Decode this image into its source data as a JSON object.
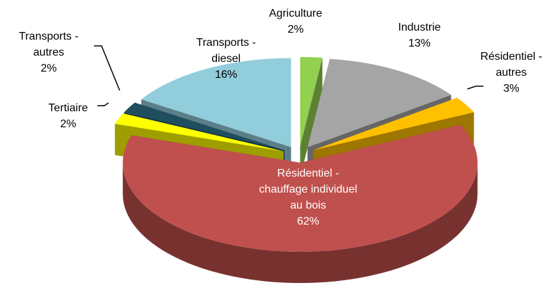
{
  "chart_data": {
    "type": "pie3d",
    "categories": [
      "Agriculture",
      "Industrie",
      "Résidentiel - autres",
      "Résidentiel - chauffage individuel au bois",
      "Tertiaire",
      "Transports - autres",
      "Transports - diesel"
    ],
    "values": [
      2,
      13,
      3,
      62,
      2,
      2,
      16
    ],
    "value_labels": [
      "2%",
      "13%",
      "3%",
      "62%",
      "2%",
      "2%",
      "16%"
    ],
    "colors": [
      "#92d050",
      "#a5a5a5",
      "#ffc000",
      "#c0504d",
      "#ffff00",
      "#1f4e5f",
      "#92cddc"
    ]
  }
}
